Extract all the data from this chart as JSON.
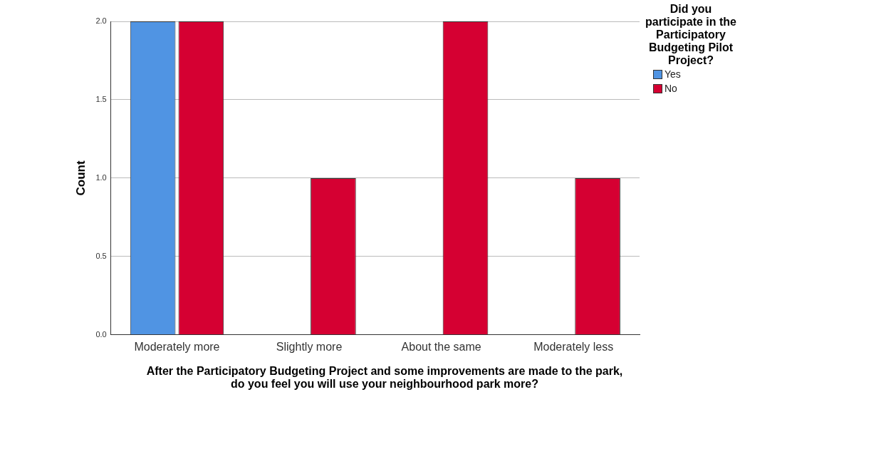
{
  "chart_data": {
    "type": "bar",
    "xlabel": "After the Participatory Budgeting Project and some improvements are made to the park, do you feel you will use your neighbourhood park more?",
    "ylabel": "Count",
    "legend_title": "Did you participate in the Participatory Budgeting Pilot Project?",
    "categories": [
      "Moderately more",
      "Slightly more",
      "About the same",
      "Moderately less"
    ],
    "series": [
      {
        "name": "Yes",
        "color": "#5094e3",
        "values": [
          2,
          null,
          null,
          null
        ]
      },
      {
        "name": "No",
        "color": "#d50032",
        "values": [
          2,
          1,
          2,
          1
        ]
      }
    ],
    "ylim": [
      0,
      2
    ],
    "yticks": [
      {
        "value": 0,
        "label": "0.0"
      },
      {
        "value": 0.5,
        "label": "0.5"
      },
      {
        "value": 1,
        "label": "1.0"
      },
      {
        "value": 1.5,
        "label": "1.5"
      },
      {
        "value": 2,
        "label": "2.0"
      }
    ],
    "grid": "y",
    "legend": "top right"
  }
}
